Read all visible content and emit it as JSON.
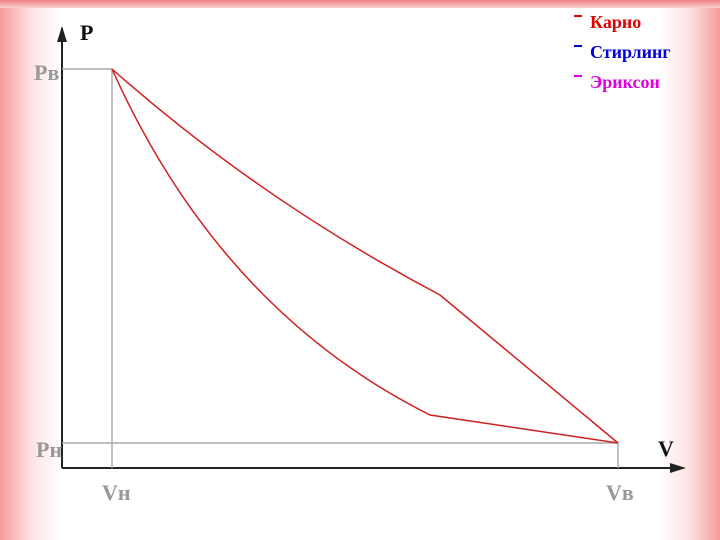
{
  "axes": {
    "y_label": "P",
    "x_label": "V"
  },
  "ticks": {
    "p_high": "Pв",
    "p_low": "Pн",
    "v_low": "Vн",
    "v_high": "Vв"
  },
  "legend": [
    {
      "label": "Карно",
      "color": "#e00000"
    },
    {
      "label": "Стирлинг",
      "color": "#0000e0"
    },
    {
      "label": "Эриксон",
      "color": "#e000e0"
    }
  ]
}
